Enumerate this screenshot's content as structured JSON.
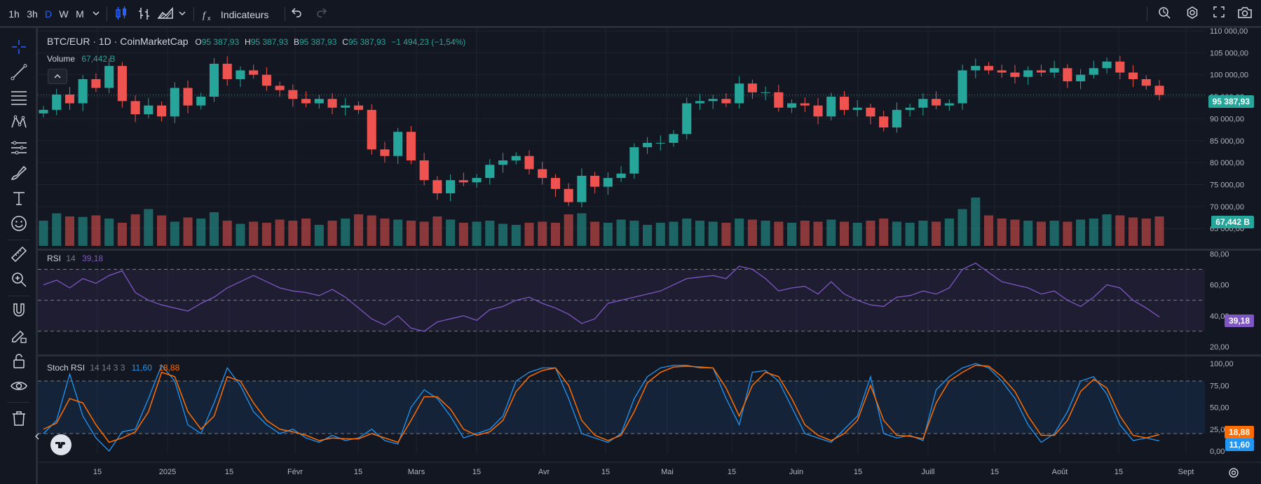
{
  "toolbar": {
    "intervals": [
      {
        "label": "1h",
        "active": false
      },
      {
        "label": "3h",
        "active": false
      },
      {
        "label": "D",
        "active": true
      },
      {
        "label": "W",
        "active": false
      },
      {
        "label": "M",
        "active": false
      }
    ],
    "indicators_label": "Indicateurs"
  },
  "legend": {
    "symbol": "BTC/EUR · 1D · CoinMarketCap",
    "o_key": "O",
    "o": "95 387,93",
    "h_key": "H",
    "h": "95 387,93",
    "b_key": "B",
    "b": "95 387,93",
    "c_key": "C",
    "c": "95 387,93",
    "change": "−1 494,23 (−1,54%)",
    "volume_label": "Volume",
    "volume_value": "67,442 B",
    "rsi_label": "RSI",
    "rsi_params": "14",
    "rsi_value": "39,18",
    "stoch_label": "Stoch RSI",
    "stoch_params": "14 14 3 3",
    "stoch_k": "11,60",
    "stoch_d": "18,88"
  },
  "price_axis": [
    "110 000,00",
    "105 000,00",
    "100 000,00",
    "95 000,00",
    "90 000,00",
    "85 000,00",
    "80 000,00",
    "75 000,00",
    "70 000,00",
    "65 000,00"
  ],
  "rsi_axis": [
    "80,00",
    "60,00",
    "40,00",
    "20,00"
  ],
  "stoch_axis": [
    "100,00",
    "75,00",
    "50,00",
    "25,00",
    "0,00"
  ],
  "time_axis": [
    "15",
    "2025",
    "15",
    "Févr",
    "15",
    "Mars",
    "15",
    "Avr",
    "15",
    "Mai",
    "15",
    "Juin",
    "15",
    "Juill",
    "15",
    "Août",
    "15",
    "Sept"
  ],
  "last_price": "95 387,93",
  "last_volume": "67,442 B",
  "colors": {
    "up": "#26a69a",
    "down": "#ef5350",
    "rsi": "#7e57c2",
    "stoch_k": "#2196f3",
    "stoch_d": "#ff6d00",
    "accent": "#2962ff"
  },
  "chart_data": [
    {
      "type": "candlestick",
      "title": "BTC/EUR · 1D · CoinMarketCap",
      "ylim": [
        62000,
        110000
      ],
      "series": [
        {
          "name": "BTC/EUR",
          "close": [
            92000,
            95500,
            93500,
            99000,
            97000,
            102000,
            94000,
            91000,
            93000,
            90500,
            97000,
            93000,
            95000,
            102500,
            99000,
            101000,
            100000,
            97500,
            96500,
            94500,
            93500,
            94500,
            92500,
            93000,
            92000,
            83000,
            81500,
            87000,
            80500,
            76000,
            73000,
            76000,
            75500,
            76500,
            79500,
            80500,
            81500,
            78500,
            76500,
            74000,
            71000,
            77000,
            74500,
            76500,
            77500,
            83500,
            84500,
            84500,
            86500,
            93500,
            94000,
            94500,
            93500,
            98000,
            96000,
            96000,
            92500,
            93500,
            93000,
            90500,
            95000,
            92000,
            92500,
            90500,
            88000,
            92000,
            92500,
            94500,
            93000,
            93500,
            101000,
            102000,
            101000,
            100500,
            99500,
            101000,
            100500,
            101500,
            98500,
            100000,
            101500,
            103000,
            100500,
            99000,
            97500,
            95388
          ]
        },
        {
          "name": "Volume",
          "values": [
            48,
            62,
            56,
            55,
            58,
            52,
            44,
            60,
            70,
            58,
            46,
            54,
            52,
            64,
            48,
            42,
            46,
            44,
            50,
            48,
            52,
            40,
            48,
            52,
            60,
            58,
            52,
            50,
            48,
            46,
            56,
            50,
            44,
            46,
            48,
            42,
            40,
            44,
            46,
            44,
            60,
            62,
            46,
            44,
            50,
            48,
            40,
            44,
            46,
            52,
            48,
            46,
            44,
            52,
            50,
            48,
            46,
            44,
            48,
            46,
            50,
            46,
            44,
            48,
            52,
            46,
            44,
            48,
            46,
            52,
            70,
            92,
            58,
            52,
            50,
            48,
            46,
            48,
            46,
            50,
            52,
            60,
            58,
            54,
            52,
            56
          ]
        }
      ]
    },
    {
      "type": "line",
      "title": "RSI 14",
      "ylim": [
        15,
        82
      ],
      "series": [
        {
          "name": "RSI",
          "values": [
            60,
            63,
            58,
            64,
            61,
            66,
            69,
            55,
            50,
            47,
            45,
            43,
            48,
            52,
            58,
            62,
            66,
            62,
            58,
            56,
            55,
            53,
            57,
            52,
            45,
            38,
            34,
            40,
            32,
            30,
            36,
            38,
            40,
            37,
            44,
            46,
            50,
            52,
            48,
            45,
            41,
            35,
            38,
            48,
            50,
            52,
            54,
            56,
            60,
            64,
            65,
            66,
            64,
            72,
            70,
            64,
            56,
            58,
            59,
            54,
            62,
            54,
            50,
            47,
            46,
            52,
            53,
            56,
            54,
            58,
            70,
            74,
            68,
            62,
            60,
            58,
            54,
            56,
            50,
            46,
            52,
            60,
            58,
            50,
            45,
            39.18
          ]
        }
      ]
    },
    {
      "type": "line",
      "title": "Stoch RSI 14 14 3 3",
      "ylim": [
        0,
        100
      ],
      "series": [
        {
          "name": "K",
          "values": [
            20,
            35,
            88,
            40,
            15,
            0,
            22,
            25,
            60,
            98,
            80,
            30,
            20,
            55,
            95,
            75,
            45,
            30,
            20,
            25,
            15,
            10,
            18,
            12,
            15,
            25,
            12,
            8,
            50,
            70,
            60,
            40,
            15,
            20,
            25,
            40,
            80,
            90,
            95,
            95,
            60,
            20,
            15,
            10,
            20,
            60,
            85,
            95,
            98,
            98,
            95,
            95,
            60,
            30,
            90,
            92,
            80,
            50,
            20,
            15,
            10,
            25,
            40,
            85,
            20,
            15,
            18,
            12,
            70,
            85,
            95,
            100,
            95,
            80,
            60,
            30,
            10,
            20,
            45,
            80,
            85,
            65,
            30,
            12,
            15,
            11.6
          ]
        },
        {
          "name": "D",
          "values": [
            25,
            32,
            60,
            55,
            30,
            10,
            15,
            22,
            45,
            90,
            85,
            45,
            25,
            40,
            85,
            80,
            55,
            35,
            25,
            22,
            18,
            12,
            15,
            14,
            14,
            20,
            15,
            10,
            35,
            62,
            62,
            48,
            25,
            18,
            22,
            35,
            68,
            85,
            92,
            95,
            75,
            35,
            18,
            12,
            18,
            45,
            78,
            90,
            96,
            97,
            96,
            95,
            72,
            40,
            75,
            90,
            85,
            60,
            30,
            18,
            12,
            20,
            35,
            75,
            35,
            18,
            17,
            14,
            55,
            80,
            90,
            98,
            97,
            85,
            68,
            40,
            18,
            18,
            35,
            68,
            82,
            72,
            40,
            18,
            15,
            18.88
          ]
        }
      ]
    }
  ]
}
